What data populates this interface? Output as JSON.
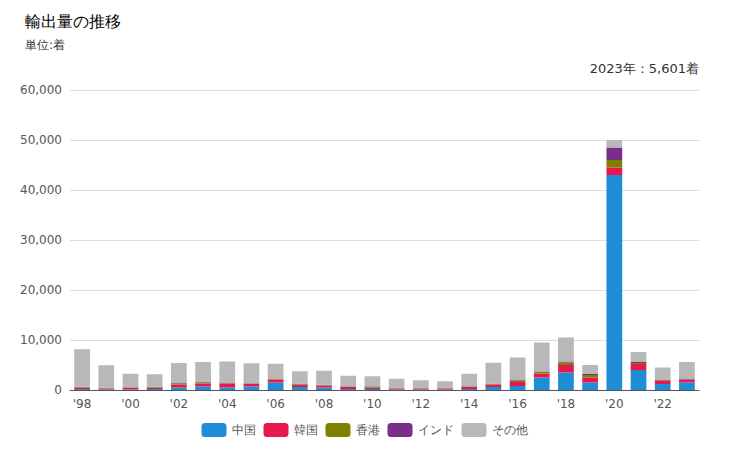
{
  "chart_data": {
    "type": "bar",
    "title": "輸出量の推移",
    "subtitle": "単位:着",
    "annotation": "2023年：5,601着",
    "categories": [
      "'98",
      null,
      "'00",
      null,
      "'02",
      null,
      "'04",
      null,
      "'06",
      null,
      "'08",
      null,
      "'10",
      null,
      "'12",
      null,
      "'14",
      null,
      "'16",
      null,
      "'18",
      null,
      "'20",
      null,
      "'22",
      null
    ],
    "series": [
      {
        "name": "中国",
        "color": "#1f8dd6",
        "values": [
          200,
          100,
          100,
          200,
          500,
          700,
          500,
          700,
          1500,
          600,
          500,
          200,
          200,
          100,
          100,
          100,
          200,
          600,
          800,
          2500,
          3500,
          1500,
          43000,
          4000,
          1200,
          1500
        ]
      },
      {
        "name": "韓国",
        "color": "#e8174d",
        "values": [
          300,
          200,
          300,
          300,
          600,
          600,
          800,
          500,
          600,
          500,
          400,
          400,
          300,
          200,
          200,
          200,
          400,
          500,
          800,
          800,
          1500,
          1000,
          1500,
          1200,
          600,
          500
        ]
      },
      {
        "name": "香港",
        "color": "#7f7f00",
        "values": [
          100,
          100,
          100,
          100,
          200,
          200,
          100,
          100,
          100,
          100,
          100,
          100,
          200,
          100,
          100,
          100,
          100,
          100,
          300,
          300,
          500,
          500,
          1500,
          200,
          100,
          100
        ]
      },
      {
        "name": "インド",
        "color": "#7B2D8B",
        "values": [
          50,
          50,
          50,
          50,
          100,
          100,
          100,
          50,
          50,
          50,
          50,
          50,
          50,
          50,
          50,
          50,
          50,
          50,
          100,
          100,
          200,
          200,
          2500,
          200,
          100,
          100
        ]
      },
      {
        "name": "その他",
        "color": "#b8b8b8",
        "values": [
          7500,
          4500,
          2700,
          2500,
          4000,
          4000,
          4200,
          4000,
          3000,
          2500,
          2800,
          2100,
          2000,
          1800,
          1500,
          1300,
          2500,
          4200,
          4500,
          5800,
          4800,
          1800,
          1500,
          2000,
          2500,
          3400
        ]
      }
    ],
    "stacked": true,
    "ylim": [
      0,
      60000
    ],
    "yticks": [
      0,
      {
        "value": 10000,
        "label": "10,000"
      },
      {
        "value": 20000,
        "label": "20,000"
      },
      {
        "value": 30000,
        "label": "30,000"
      },
      {
        "value": 40000,
        "label": "40,000"
      },
      {
        "value": 50000,
        "label": "50,000"
      },
      {
        "value": 60000,
        "label": "60,000"
      }
    ],
    "grid": true,
    "legend": "bottom"
  }
}
